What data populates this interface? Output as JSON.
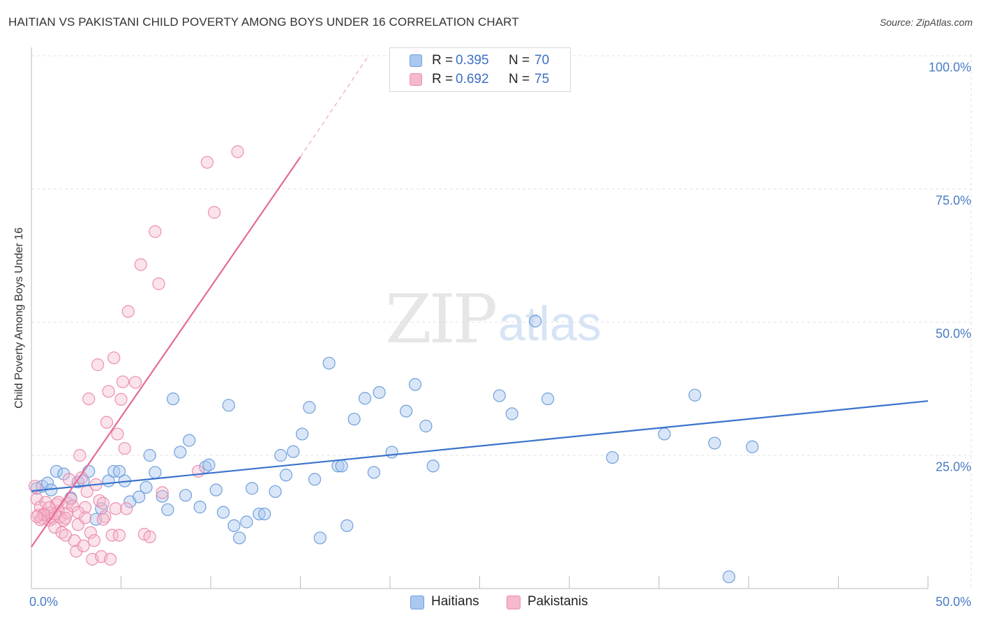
{
  "header": {
    "title": "HAITIAN VS PAKISTANI CHILD POVERTY AMONG BOYS UNDER 16 CORRELATION CHART",
    "source": "Source: ZipAtlas.com"
  },
  "watermark": {
    "zip": "ZIP",
    "atlas": "atlas"
  },
  "legend": {
    "haitians": {
      "r_label": "R = ",
      "r_value": "0.395",
      "n_label": "N = ",
      "n_value": "70"
    },
    "pakistanis": {
      "r_label": "R = ",
      "r_value": "0.692",
      "n_label": "N = ",
      "n_value": "75"
    }
  },
  "bottom_legend": {
    "haitians": "Haitians",
    "pakistanis": "Pakistanis"
  },
  "colors": {
    "haitians_fill": "#aac8f0",
    "haitians_stroke": "#6f9fdc",
    "haitians_line": "#3a72cc",
    "pakistanis_fill": "#f6b8cc",
    "pakistanis_stroke": "#ec8fae",
    "pakistanis_line": "#e46a95",
    "grid": "#e0e0e0",
    "axis_text": "#4a7cc4"
  },
  "chart_data": {
    "type": "scatter",
    "title": "HAITIAN VS PAKISTANI CHILD POVERTY AMONG BOYS UNDER 16 CORRELATION CHART",
    "xlabel": "",
    "ylabel": "Child Poverty Among Boys Under 16",
    "xlim": [
      0,
      50
    ],
    "ylim": [
      0,
      100
    ],
    "x_tick_labels": [
      "0.0%",
      "50.0%"
    ],
    "y_tick_labels": [
      "25.0%",
      "50.0%",
      "75.0%",
      "100.0%"
    ],
    "y_ticks": [
      25,
      50,
      75,
      100
    ],
    "grid": true,
    "legend_position": "top-center",
    "series": [
      {
        "name": "Haitians",
        "r": 0.395,
        "n": 70,
        "trend": {
          "x": [
            0,
            50
          ],
          "y": [
            18.3,
            35.2
          ],
          "dashed_extension": false
        },
        "points": [
          [
            0.3,
            18.8
          ],
          [
            0.6,
            19.2
          ],
          [
            0.9,
            19.8
          ],
          [
            1.1,
            18.5
          ],
          [
            1.4,
            22.0
          ],
          [
            1.8,
            21.5
          ],
          [
            2.2,
            17.0
          ],
          [
            2.6,
            20.0
          ],
          [
            2.9,
            20.2
          ],
          [
            3.2,
            22.0
          ],
          [
            3.6,
            13.0
          ],
          [
            3.9,
            15.0
          ],
          [
            4.3,
            20.2
          ],
          [
            4.6,
            22.0
          ],
          [
            4.9,
            22.0
          ],
          [
            5.2,
            20.2
          ],
          [
            5.5,
            16.3
          ],
          [
            6.0,
            17.2
          ],
          [
            6.4,
            19.0
          ],
          [
            6.6,
            25.0
          ],
          [
            6.9,
            21.8
          ],
          [
            7.3,
            17.3
          ],
          [
            7.6,
            14.8
          ],
          [
            7.9,
            35.6
          ],
          [
            8.3,
            25.6
          ],
          [
            8.6,
            17.5
          ],
          [
            8.8,
            27.8
          ],
          [
            9.4,
            15.3
          ],
          [
            9.7,
            22.8
          ],
          [
            9.9,
            23.2
          ],
          [
            10.3,
            18.5
          ],
          [
            10.7,
            14.3
          ],
          [
            11.0,
            34.4
          ],
          [
            11.3,
            11.8
          ],
          [
            11.6,
            9.5
          ],
          [
            12.0,
            12.5
          ],
          [
            12.3,
            18.8
          ],
          [
            12.7,
            14.0
          ],
          [
            13.0,
            14.0
          ],
          [
            13.6,
            18.2
          ],
          [
            13.9,
            25.0
          ],
          [
            14.2,
            21.3
          ],
          [
            14.6,
            25.7
          ],
          [
            15.1,
            29.0
          ],
          [
            15.5,
            34.0
          ],
          [
            15.8,
            20.5
          ],
          [
            16.1,
            9.5
          ],
          [
            16.6,
            42.3
          ],
          [
            17.1,
            23.0
          ],
          [
            17.3,
            23.0
          ],
          [
            17.6,
            11.8
          ],
          [
            18.0,
            31.8
          ],
          [
            18.6,
            35.7
          ],
          [
            19.1,
            21.8
          ],
          [
            19.4,
            36.8
          ],
          [
            20.1,
            25.6
          ],
          [
            20.9,
            33.3
          ],
          [
            21.4,
            38.3
          ],
          [
            22.0,
            30.5
          ],
          [
            22.4,
            23.0
          ],
          [
            26.1,
            36.2
          ],
          [
            26.8,
            32.8
          ],
          [
            28.1,
            50.2
          ],
          [
            28.8,
            35.6
          ],
          [
            32.4,
            24.6
          ],
          [
            35.3,
            29.0
          ],
          [
            37.0,
            36.3
          ],
          [
            38.1,
            27.3
          ],
          [
            38.9,
            2.2
          ],
          [
            40.2,
            26.6
          ]
        ]
      },
      {
        "name": "Pakistanis",
        "r": 0.692,
        "n": 75,
        "trend": {
          "x": [
            0,
            15
          ],
          "y": [
            7.8,
            81.0
          ],
          "dashed_to": {
            "x": 18.8,
            "y": 100
          }
        },
        "points": [
          [
            0.2,
            19.2
          ],
          [
            0.3,
            16.8
          ],
          [
            0.4,
            13.8
          ],
          [
            0.5,
            15.3
          ],
          [
            0.6,
            13.2
          ],
          [
            0.7,
            14.0
          ],
          [
            0.8,
            16.2
          ],
          [
            0.9,
            13.8
          ],
          [
            1.0,
            12.8
          ],
          [
            1.1,
            14.2
          ],
          [
            1.2,
            13.2
          ],
          [
            1.3,
            11.5
          ],
          [
            1.4,
            15.8
          ],
          [
            1.5,
            14.5
          ],
          [
            1.6,
            13.4
          ],
          [
            1.7,
            10.5
          ],
          [
            1.8,
            12.8
          ],
          [
            1.9,
            10.0
          ],
          [
            2.0,
            16.0
          ],
          [
            2.0,
            14.2
          ],
          [
            2.1,
            20.5
          ],
          [
            2.2,
            16.8
          ],
          [
            2.3,
            15.5
          ],
          [
            2.4,
            9.0
          ],
          [
            2.5,
            7.0
          ],
          [
            2.6,
            12.0
          ],
          [
            2.7,
            25.0
          ],
          [
            2.8,
            20.8
          ],
          [
            2.9,
            8.0
          ],
          [
            3.0,
            15.2
          ],
          [
            3.1,
            18.2
          ],
          [
            3.2,
            35.6
          ],
          [
            3.3,
            10.5
          ],
          [
            3.4,
            5.5
          ],
          [
            3.5,
            9.0
          ],
          [
            3.6,
            19.5
          ],
          [
            3.7,
            42.0
          ],
          [
            3.8,
            16.5
          ],
          [
            3.9,
            6.0
          ],
          [
            4.0,
            16.0
          ],
          [
            4.1,
            13.5
          ],
          [
            4.2,
            31.2
          ],
          [
            4.3,
            37.0
          ],
          [
            4.4,
            5.5
          ],
          [
            4.5,
            10.0
          ],
          [
            4.6,
            43.3
          ],
          [
            4.7,
            15.0
          ],
          [
            4.8,
            29.0
          ],
          [
            4.9,
            10.0
          ],
          [
            5.0,
            35.5
          ],
          [
            5.1,
            38.8
          ],
          [
            5.2,
            26.3
          ],
          [
            5.3,
            15.0
          ],
          [
            5.4,
            52.0
          ],
          [
            5.8,
            38.7
          ],
          [
            6.1,
            60.8
          ],
          [
            6.3,
            10.2
          ],
          [
            6.6,
            9.7
          ],
          [
            6.9,
            67.0
          ],
          [
            7.1,
            57.2
          ],
          [
            7.3,
            18.0
          ],
          [
            9.3,
            22.0
          ],
          [
            9.8,
            80.0
          ],
          [
            10.2,
            70.6
          ],
          [
            11.5,
            82.0
          ],
          [
            4.0,
            13.0
          ],
          [
            3.0,
            13.3
          ],
          [
            2.6,
            14.3
          ],
          [
            1.9,
            13.2
          ],
          [
            1.5,
            16.2
          ],
          [
            1.3,
            14.0
          ],
          [
            1.0,
            15.2
          ],
          [
            0.7,
            13.8
          ],
          [
            0.5,
            12.9
          ],
          [
            0.3,
            13.5
          ]
        ]
      }
    ]
  }
}
